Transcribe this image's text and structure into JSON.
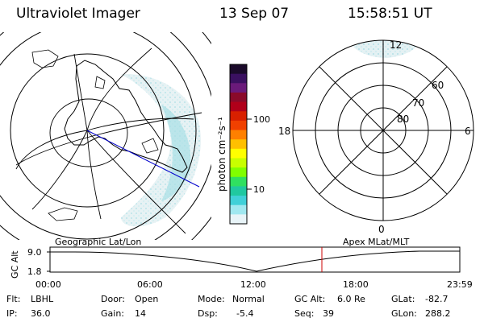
{
  "header": {
    "instrument": "Ultraviolet Imager",
    "date": "13 Sep 07",
    "time": "15:58:51 UT"
  },
  "colorbar": {
    "unit_label": "photon cm⁻²s⁻¹",
    "ticks": [
      "100",
      "10"
    ],
    "colors": [
      "#1a0a2a",
      "#3a1060",
      "#6a1a7a",
      "#8a0a2a",
      "#b0001a",
      "#d82000",
      "#f04000",
      "#ff8000",
      "#ffc000",
      "#ffff00",
      "#c8ff00",
      "#80ff00",
      "#30e060",
      "#20c8a0",
      "#40d0d8",
      "#a0e8f0",
      "#e8f4f8"
    ]
  },
  "polar_plot": {
    "mlt_labels": {
      "top": "12",
      "left": "18",
      "right": "6",
      "bottom": "0"
    },
    "lat_labels": [
      "60",
      "70",
      "80"
    ]
  },
  "timeline": {
    "axis_label": "GC Alt",
    "y_ticks": [
      "9.0",
      "1.8"
    ],
    "left_title": "Geographic Lat/Lon",
    "right_title": "Apex MLat/MLT",
    "x_ticks": [
      "00:00",
      "06:00",
      "12:00",
      "18:00",
      "23:59"
    ],
    "marker_color": "#cc0000"
  },
  "info": {
    "flt_label": "Flt:",
    "flt_value": "LBHL",
    "ip_label": "IP:",
    "ip_value": "36.0",
    "door_label": "Door:",
    "door_value": "Open",
    "gain_label": "Gain:",
    "gain_value": "14",
    "mode_label": "Mode:",
    "mode_value": "Normal",
    "dsp_label": "Dsp:",
    "dsp_value": "-5.4",
    "gcalt_label": "GC Alt:",
    "gcalt_value": "6.0 Re",
    "seq_label": "Seq:",
    "seq_value": "39",
    "glat_label": "GLat:",
    "glat_value": "-82.7",
    "glon_label": "GLon:",
    "glon_value": "288.2"
  }
}
